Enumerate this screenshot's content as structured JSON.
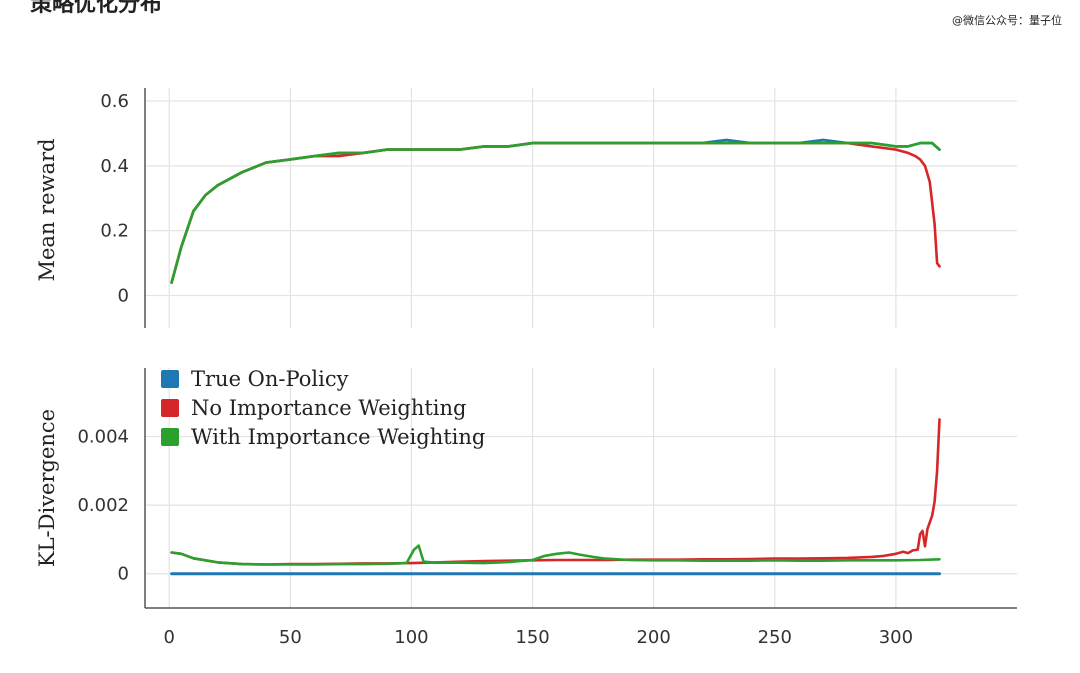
{
  "header": {
    "title_fragment": "策略优化分布",
    "watermark": "@微信公众号：量子位"
  },
  "colors": {
    "true_on_policy": "#1f77b4",
    "no_importance_weighting": "#d62728",
    "with_importance_weighting": "#2ca02c",
    "grid": "#e3e3e3",
    "axis": "#555555"
  },
  "chart_data": [
    {
      "type": "line",
      "ylabel": "Mean reward",
      "xlim": [
        -10,
        350
      ],
      "ylim": [
        -0.1,
        0.64
      ],
      "yticks": [
        0,
        0.2,
        0.4,
        0.6
      ],
      "ytick_labels": [
        "0",
        "0.2",
        "0.4",
        "0.6"
      ],
      "xticks": [
        0,
        50,
        100,
        150,
        200,
        250,
        300
      ],
      "grid": true,
      "series": [
        {
          "name": "True On-Policy",
          "color": "#1f77b4",
          "x": [
            1,
            5,
            10,
            15,
            20,
            25,
            30,
            40,
            50,
            60,
            70,
            80,
            90,
            100,
            110,
            120,
            130,
            140,
            150,
            160,
            170,
            180,
            190,
            200,
            210,
            220,
            230,
            240,
            250,
            260,
            270,
            280,
            290,
            300,
            305,
            310,
            315,
            318
          ],
          "y": [
            0.04,
            0.15,
            0.26,
            0.31,
            0.34,
            0.36,
            0.38,
            0.41,
            0.42,
            0.43,
            0.44,
            0.44,
            0.45,
            0.45,
            0.45,
            0.45,
            0.46,
            0.46,
            0.47,
            0.47,
            0.47,
            0.47,
            0.47,
            0.47,
            0.47,
            0.47,
            0.48,
            0.47,
            0.47,
            0.47,
            0.48,
            0.47,
            0.47,
            0.46,
            0.46,
            0.47,
            0.47,
            0.45
          ]
        },
        {
          "name": "No Importance Weighting",
          "color": "#d62728",
          "x": [
            1,
            5,
            10,
            15,
            20,
            25,
            30,
            40,
            50,
            60,
            70,
            80,
            90,
            100,
            110,
            120,
            130,
            140,
            150,
            160,
            170,
            180,
            190,
            200,
            210,
            220,
            230,
            240,
            250,
            260,
            270,
            280,
            290,
            300,
            305,
            308,
            310,
            312,
            314,
            316,
            317,
            318
          ],
          "y": [
            0.04,
            0.15,
            0.26,
            0.31,
            0.34,
            0.36,
            0.38,
            0.41,
            0.42,
            0.43,
            0.43,
            0.44,
            0.45,
            0.45,
            0.45,
            0.45,
            0.46,
            0.46,
            0.47,
            0.47,
            0.47,
            0.47,
            0.47,
            0.47,
            0.47,
            0.47,
            0.47,
            0.47,
            0.47,
            0.47,
            0.47,
            0.47,
            0.46,
            0.45,
            0.44,
            0.43,
            0.42,
            0.4,
            0.35,
            0.22,
            0.1,
            0.09
          ]
        },
        {
          "name": "With Importance Weighting",
          "color": "#2ca02c",
          "x": [
            1,
            5,
            10,
            15,
            20,
            25,
            30,
            40,
            50,
            60,
            70,
            80,
            90,
            100,
            110,
            120,
            130,
            140,
            150,
            160,
            170,
            180,
            190,
            200,
            210,
            220,
            230,
            240,
            250,
            260,
            270,
            280,
            290,
            300,
            305,
            310,
            315,
            318
          ],
          "y": [
            0.04,
            0.15,
            0.26,
            0.31,
            0.34,
            0.36,
            0.38,
            0.41,
            0.42,
            0.43,
            0.44,
            0.44,
            0.45,
            0.45,
            0.45,
            0.45,
            0.46,
            0.46,
            0.47,
            0.47,
            0.47,
            0.47,
            0.47,
            0.47,
            0.47,
            0.47,
            0.47,
            0.47,
            0.47,
            0.47,
            0.47,
            0.47,
            0.47,
            0.46,
            0.46,
            0.47,
            0.47,
            0.45
          ]
        }
      ]
    },
    {
      "type": "line",
      "ylabel": "KL-Divergence",
      "xlim": [
        -10,
        350
      ],
      "ylim": [
        -0.001,
        0.006
      ],
      "yticks": [
        0,
        0.002,
        0.004
      ],
      "ytick_labels": [
        "0",
        "0.002",
        "0.004"
      ],
      "xticks": [
        0,
        50,
        100,
        150,
        200,
        250,
        300
      ],
      "xtick_labels": [
        "0",
        "50",
        "100",
        "150",
        "200",
        "250",
        "300"
      ],
      "grid": true,
      "legend": "top-left",
      "series": [
        {
          "name": "True On-Policy",
          "color": "#1f77b4",
          "x": [
            1,
            318
          ],
          "y": [
            0,
            0
          ]
        },
        {
          "name": "No Importance Weighting",
          "color": "#d62728",
          "x": [
            1,
            5,
            10,
            20,
            30,
            40,
            50,
            60,
            70,
            80,
            90,
            100,
            110,
            120,
            130,
            140,
            150,
            160,
            170,
            180,
            190,
            200,
            210,
            220,
            230,
            240,
            250,
            260,
            270,
            280,
            290,
            295,
            300,
            303,
            305,
            307,
            309,
            310,
            311,
            312,
            313,
            314,
            315,
            316,
            317,
            318
          ],
          "y": [
            0.00062,
            0.00058,
            0.00045,
            0.00033,
            0.00028,
            0.00027,
            0.00028,
            0.00028,
            0.00029,
            0.0003,
            0.0003,
            0.00031,
            0.00033,
            0.00035,
            0.00037,
            0.00038,
            0.00039,
            0.0004,
            0.0004,
            0.0004,
            0.00041,
            0.00041,
            0.00041,
            0.00042,
            0.00042,
            0.00043,
            0.00044,
            0.00044,
            0.00045,
            0.00046,
            0.00049,
            0.00052,
            0.00058,
            0.00064,
            0.0006,
            0.00068,
            0.0007,
            0.00115,
            0.00125,
            0.0008,
            0.0013,
            0.0015,
            0.0017,
            0.0021,
            0.003,
            0.0045
          ]
        },
        {
          "name": "With Importance Weighting",
          "color": "#2ca02c",
          "x": [
            1,
            5,
            10,
            20,
            30,
            40,
            50,
            60,
            70,
            80,
            90,
            98,
            101,
            103,
            105,
            110,
            120,
            130,
            140,
            150,
            155,
            160,
            165,
            170,
            175,
            180,
            190,
            200,
            210,
            220,
            230,
            240,
            250,
            260,
            270,
            280,
            290,
            300,
            310,
            318
          ],
          "y": [
            0.00062,
            0.00058,
            0.00045,
            0.00033,
            0.00028,
            0.00027,
            0.00027,
            0.00027,
            0.00028,
            0.00028,
            0.00029,
            0.00031,
            0.0007,
            0.00082,
            0.00035,
            0.00032,
            0.00032,
            0.00031,
            0.00034,
            0.0004,
            0.00052,
            0.00058,
            0.00062,
            0.00055,
            0.00049,
            0.00044,
            0.0004,
            0.00039,
            0.00039,
            0.00038,
            0.00038,
            0.00038,
            0.00039,
            0.00038,
            0.00038,
            0.00039,
            0.00039,
            0.00039,
            0.0004,
            0.00042
          ]
        }
      ]
    }
  ]
}
